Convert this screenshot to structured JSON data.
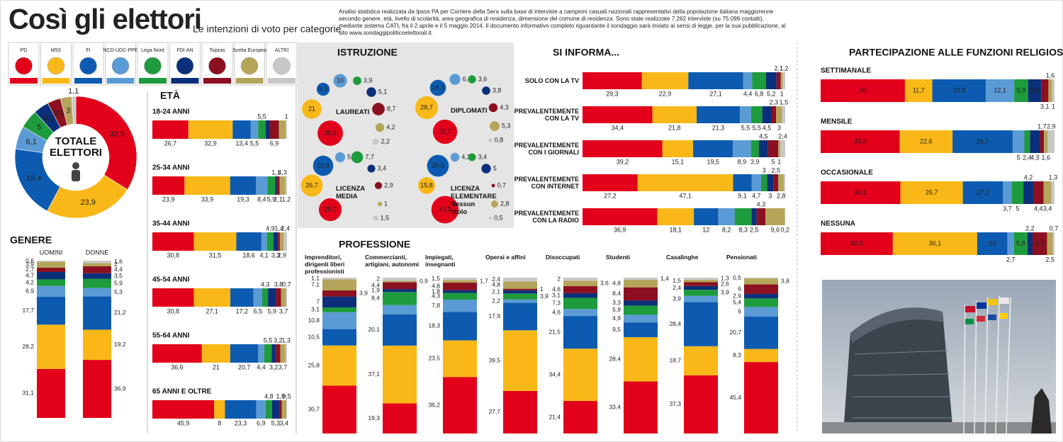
{
  "header": {
    "title": "Così gli elettori",
    "subtitle": "Le intenzioni di voto per categorie",
    "note": "Analisi statistica realizzata da Ipsos PA per Corriere della Sera sulla base di interviste a campioni casuali nazionali rappresentativi della popolazione italiana maggiorenne secondo genere, età, livello di scolarità, area geografica di residenza, dimensione del comune di residenza. Sono state realizzate 7.262 interviste (su 75.099 contatti), mediante sistema CATI, fra il 2 aprile e il 5 maggio 2014. Il documento informativo completo riguardante il sondaggio sarà inviato ai sensi di legge, per la sua pubblicazione, al sito www.sondaggipoliticoelettorali.it."
  },
  "parties": [
    {
      "name": "PD",
      "color": "#e2001a"
    },
    {
      "name": "M5S",
      "color": "#f9b817"
    },
    {
      "name": "FI",
      "color": "#0c5bb0"
    },
    {
      "name": "NCD-UDC-PPE",
      "color": "#5b9bd5"
    },
    {
      "name": "Lega Nord",
      "color": "#1e9b3c"
    },
    {
      "name": "FDI-AN",
      "color": "#0b2f7a"
    },
    {
      "name": "Tsipras",
      "color": "#8c1020"
    },
    {
      "name": "Scelta Europea",
      "color": "#b5a55a"
    },
    {
      "name": "ALTRI",
      "color": "#c8c8c8"
    }
  ],
  "chart_data": [
    {
      "type": "pie",
      "title": "TOTALE ELETTORI",
      "values": [
        33.9,
        23.9,
        19.4,
        6.1,
        5,
        4.1,
        3.5,
        3,
        1.1
      ],
      "value_labels": [
        "33,9",
        "23,9",
        "19,4",
        "6,1",
        "5",
        "4,1",
        "3,5",
        "3",
        "1,1"
      ]
    },
    {
      "type": "stacked-column",
      "title": "GENERE",
      "categories": [
        "UOMINI",
        "DONNE"
      ],
      "values": [
        [
          31.1,
          28.2,
          17.7,
          6.9,
          4.2,
          4.7,
          2.7,
          3.9,
          0.6
        ],
        [
          36.9,
          19.2,
          21.2,
          5.3,
          5.9,
          3.5,
          4.4,
          2,
          1.6
        ]
      ],
      "value_labels": [
        [
          "31,1",
          "28,2",
          "17,7",
          "6,9",
          "4,2",
          "4,7",
          "2,7",
          "3,9",
          "0,6"
        ],
        [
          "36,9",
          "19,2",
          "21,2",
          "5,3",
          "5,9",
          "3,5",
          "4,4",
          "2",
          "1,6"
        ]
      ]
    },
    {
      "type": "stacked-bar",
      "title": "ETÀ",
      "categories": [
        "18-24 ANNI",
        "25-34 ANNI",
        "35-44 ANNI",
        "45-54 ANNI",
        "55-64 ANNI",
        "65 ANNI E OLTRE"
      ],
      "values": [
        [
          26.7,
          32.9,
          13.4,
          5.5,
          5.5,
          3,
          6.9,
          5,
          1
        ],
        [
          23.9,
          33.9,
          19.3,
          8.4,
          5.9,
          1.1,
          2.1,
          4.3,
          1.2
        ],
        [
          30.8,
          31.5,
          18.6,
          4.1,
          4.9,
          3.3,
          1.4,
          2.9,
          2.4
        ],
        [
          30.8,
          27.1,
          17.2,
          6.5,
          4.3,
          5.9,
          3.8,
          3.7,
          0.7
        ],
        [
          36.6,
          21,
          20.7,
          4.4,
          5.5,
          3.2,
          3.2,
          3.7,
          1.3
        ],
        [
          45.9,
          8,
          23.3,
          6.9,
          4.8,
          5.3,
          1.9,
          3.4,
          0.5
        ]
      ],
      "value_labels": [
        [
          "26,7",
          "32,9",
          "13,4",
          "5,5",
          "5,5",
          null,
          "6,9",
          null,
          "1"
        ],
        [
          "23,9",
          "33,9",
          "19,3",
          "8,4",
          "5,9",
          "1,1",
          "2,1",
          "4,3",
          "1,2"
        ],
        [
          "30,8",
          "31,5",
          "18,6",
          "4,1",
          "4,9",
          "3,3",
          "1,4",
          "2,9",
          "2,4"
        ],
        [
          "30,8",
          "27,1",
          "17,2",
          "6,5",
          "4,3",
          "5,9",
          "3,8",
          "3,7",
          "0,7"
        ],
        [
          "36,6",
          "21",
          "20,7",
          "4,4",
          "5,5",
          "3,2",
          "3,2",
          "3,7",
          "1,3"
        ],
        [
          "45,9",
          "8",
          "23,3",
          "6,9",
          "4,8",
          "5,3",
          "1,9",
          "3,4",
          "0,5"
        ]
      ]
    },
    {
      "type": "bubble",
      "title": "ISTRUZIONE",
      "categories": [
        "LAUREATI",
        "DIPLOMATI",
        "LICENZA MEDIA",
        "LICENZA ELEMENTARE Nessun titolo"
      ],
      "values": [
        [
          35.6,
          21,
          9.3,
          10,
          3.9,
          5.1,
          8.7,
          4.2,
          2.2
        ],
        [
          32.7,
          28.7,
          14.3,
          6.6,
          3.6,
          3.8,
          4.3,
          5.3,
          0.8
        ],
        [
          28.7,
          26.7,
          22.6,
          5.5,
          7.7,
          3.4,
          2.9,
          1,
          1.5
        ],
        [
          41.5,
          15.8,
          26.3,
          4.3,
          3.4,
          5,
          0.7,
          2.8,
          0.5
        ]
      ],
      "value_labels": [
        [
          "35,6",
          "21",
          "9,3",
          "10",
          "3,9",
          "5,1",
          "8,7",
          "4,2",
          "2,2"
        ],
        [
          "32,7",
          "28,7",
          "14,3",
          "6,6",
          "3,6",
          "3,8",
          "4,3",
          "5,3",
          "0,8"
        ],
        [
          "28,7",
          "26,7",
          "22,6",
          "5,5",
          "7,7",
          "3,4",
          "2,9",
          "1",
          "1,5"
        ],
        [
          "41,5",
          "15,8",
          "26,3",
          "4,3",
          "3,4",
          "5",
          "0,7",
          "2,8",
          "0,5"
        ]
      ]
    },
    {
      "type": "stacked-bar",
      "title": "SI INFORMA...",
      "categories": [
        "SOLO CON LA TV",
        "PREVALENTEMENTE CON LA TV",
        "PREVALENTEMENTE CON I GIORNALI",
        "PREVALENTEMENTE CON INTERNET",
        "PREVALENTEMENTE CON LA RADIO"
      ],
      "values": [
        [
          29.3,
          22.9,
          27.1,
          4.4,
          6.8,
          5.2,
          2.1,
          1,
          1.2
        ],
        [
          34.4,
          21.8,
          21.3,
          5.5,
          5.5,
          4.5,
          2.3,
          3,
          1.5
        ],
        [
          39.2,
          15.1,
          19.5,
          8.9,
          3.9,
          4.5,
          5,
          1,
          2.4
        ],
        [
          27.2,
          47.1,
          9.1,
          4.7,
          3,
          3,
          2.5,
          2.8,
          0.6
        ],
        [
          36.9,
          18.1,
          12,
          8.2,
          8.3,
          2.5,
          4.3,
          9.6,
          0.2
        ]
      ],
      "value_labels": [
        [
          "29,3",
          "22,9",
          "27,1",
          "4,4",
          "6,8",
          "5,2",
          "2,1",
          "1",
          "1,2"
        ],
        [
          "34,4",
          "21,8",
          "21,3",
          "5,5",
          "5,5",
          "4,5",
          "2,3",
          "3",
          "1,5"
        ],
        [
          "39,2",
          "15,1",
          "19,5",
          "8,9",
          "3,9",
          "4,5",
          "5",
          "1",
          "2,4"
        ],
        [
          "27,2",
          "47,1",
          "9,1",
          "4,7",
          "3",
          "3",
          "2,5",
          "2,8",
          null
        ],
        [
          "36,9",
          "18,1",
          "12",
          "8,2",
          "8,3",
          "2,5",
          "4,3",
          "9,6",
          "0,2"
        ]
      ]
    },
    {
      "type": "stacked-column",
      "title": "PROFESSIONE",
      "categories": [
        "Imprenditori, dirigenti liberi professionisti",
        "Commercianti, artigiani, autonomi",
        "Impiegati, insegnanti",
        "Operai e affini",
        "Disoccupati",
        "Studenti",
        "Casalinghe",
        "Pensionati"
      ],
      "values": [
        [
          30.7,
          25.8,
          10.5,
          10.8,
          3.1,
          7,
          3.9,
          7.1,
          1.1
        ],
        [
          19.3,
          37.1,
          20.1,
          5.9,
          8.4,
          1.9,
          4.4,
          0.9,
          2
        ],
        [
          36.2,
          23.5,
          18.3,
          7.8,
          4.3,
          1.8,
          4.8,
          1.7,
          1.5
        ],
        [
          27.7,
          39.5,
          17.9,
          2.2,
          3.9,
          2.1,
          1,
          4.8,
          2.4
        ],
        [
          21.4,
          34.4,
          21.5,
          4.6,
          7.3,
          3.1,
          4.6,
          3.6,
          2
        ],
        [
          33.4,
          28.4,
          9.5,
          4.9,
          5.9,
          3.3,
          8.4,
          4.8,
          1.4
        ],
        [
          37.3,
          18.7,
          28.4,
          3.9,
          3.9,
          2.4,
          2.6,
          1.5,
          1.3
        ],
        [
          45.4,
          8.3,
          20.7,
          6,
          5.4,
          2.9,
          6,
          3.8,
          0.5
        ]
      ],
      "value_labels": [
        [
          "30,7",
          "25,8",
          "10,5",
          "10,8",
          "3,1",
          "7",
          "3,9",
          "7,1",
          "1,1"
        ],
        [
          "19,3",
          "37,1",
          "20,1",
          null,
          "8,4",
          "1,9",
          "4,4",
          "0,9",
          "2"
        ],
        [
          "36,2",
          "23,5",
          "18,3",
          "7,8",
          "4,3",
          "1,8",
          "4,8",
          "1,7",
          "1,5"
        ],
        [
          "27,7",
          "39,5",
          "17,9",
          "2,2",
          "3,9",
          "2,1",
          "1",
          "4,8",
          "2,4"
        ],
        [
          "21,4",
          "34,4",
          "21,5",
          "4,6",
          "7,3",
          "3,1",
          "4,6",
          "3,6",
          "2"
        ],
        [
          "33,4",
          "28,4",
          "9,5",
          "4,9",
          "5,9",
          "3,3",
          "8,4",
          "4,8",
          "1,4"
        ],
        [
          "37,3",
          "18,7",
          "28,4",
          "3,9",
          "3,9",
          "2,4",
          "2,6",
          "1,5",
          "1,3"
        ],
        [
          "45,4",
          "8,3",
          "20,7",
          "6",
          "5,4",
          "2,9",
          "6",
          "3,8",
          "0,5"
        ]
      ]
    },
    {
      "type": "stacked-bar",
      "title": "PARTECIPAZIONE ALLE FUNZIONI RELIGIOSE",
      "categories": [
        "SETTIMANALE",
        "MENSILE",
        "OCCASIONALE",
        "NESSUNA"
      ],
      "values": [
        [
          36,
          11.7,
          22.9,
          12.1,
          5.9,
          5.6,
          3.1,
          1.6,
          1
        ],
        [
          33.8,
          22.6,
          25.7,
          5,
          2.4,
          4.3,
          1.7,
          1.6,
          2.9
        ],
        [
          34.1,
          26.7,
          17.2,
          3.7,
          5,
          4.2,
          4.4,
          3.4,
          1.3
        ],
        [
          30.9,
          36.1,
          13,
          2.7,
          5.8,
          2.2,
          6.2,
          2.5,
          0.7
        ]
      ],
      "value_labels": [
        [
          "36",
          "11,7",
          "22,9",
          "12,1",
          "5,9",
          "5,6",
          "3,1",
          "1,6",
          "1"
        ],
        [
          "33,8",
          "22,6",
          "25,7",
          "5",
          "2,4",
          "4,3",
          "1,7",
          "1,6",
          "2,9"
        ],
        [
          "34,1",
          "26,7",
          "17,2",
          "3,7",
          "5",
          "4,2",
          "4,4",
          "3,4",
          "1,3"
        ],
        [
          "30,9",
          "36,1",
          "13",
          "2,7",
          "5,8",
          "2,2",
          "6,2",
          "2,5",
          "0,7"
        ]
      ]
    }
  ]
}
